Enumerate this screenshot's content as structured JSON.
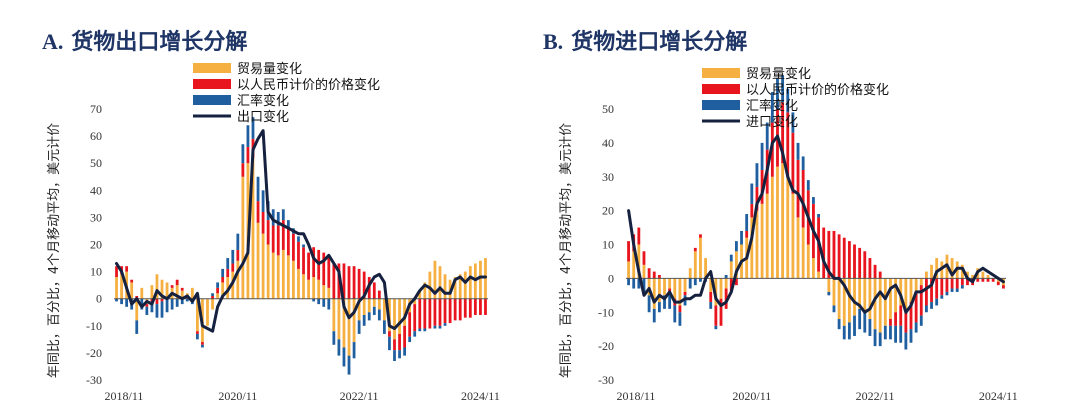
{
  "colors": {
    "volume": "#f5b041",
    "price": "#e8141e",
    "fx": "#1f5fa0",
    "line": "#15213f",
    "title": "#1f3566"
  },
  "chart_data": [
    {
      "type": "bar",
      "title_letter": "A.",
      "title_text": "货物出口增长分解",
      "ylabel": "年同比，百分比，4个月移动平均，美元计价",
      "ylim": [
        -30,
        70
      ],
      "yticks": [
        "70",
        "60",
        "50",
        "40",
        "30",
        "20",
        "10",
        "0",
        "-10",
        "-20",
        "-30"
      ],
      "xticklabels": [
        "2018/11",
        "2020/11",
        "2022/11",
        "2024/11"
      ],
      "xtick_index": [
        0,
        24,
        48,
        72
      ],
      "legend": [
        {
          "key": "volume",
          "label": "贸易量变化"
        },
        {
          "key": "price",
          "label": "以人民币计价的价格变化"
        },
        {
          "key": "fx",
          "label": "汇率变化"
        },
        {
          "key": "line",
          "label": "出口变化"
        }
      ],
      "x": [
        "2018/11",
        "2018/12",
        "2019/01",
        "2019/02",
        "2019/03",
        "2019/04",
        "2019/05",
        "2019/06",
        "2019/07",
        "2019/08",
        "2019/09",
        "2019/10",
        "2019/11",
        "2019/12",
        "2020/01",
        "2020/02",
        "2020/03",
        "2020/04",
        "2020/05",
        "2020/06",
        "2020/07",
        "2020/08",
        "2020/09",
        "2020/10",
        "2020/11",
        "2020/12",
        "2021/01",
        "2021/02",
        "2021/03",
        "2021/04",
        "2021/05",
        "2021/06",
        "2021/07",
        "2021/08",
        "2021/09",
        "2021/10",
        "2021/11",
        "2021/12",
        "2022/01",
        "2022/02",
        "2022/03",
        "2022/04",
        "2022/05",
        "2022/06",
        "2022/07",
        "2022/08",
        "2022/09",
        "2022/10",
        "2022/11",
        "2022/12",
        "2023/01",
        "2023/02",
        "2023/03",
        "2023/04",
        "2023/05",
        "2023/06",
        "2023/07",
        "2023/08",
        "2023/09",
        "2023/10",
        "2023/11",
        "2023/12",
        "2024/01",
        "2024/02",
        "2024/03",
        "2024/04",
        "2024/05",
        "2024/06",
        "2024/07",
        "2024/08",
        "2024/09",
        "2024/10",
        "2024/11",
        "2024/12"
      ],
      "series": [
        {
          "name": "贸易量变化",
          "key": "volume",
          "values": [
            8,
            9,
            10,
            6,
            -8,
            4,
            -2,
            5,
            9,
            7,
            6,
            4,
            5,
            3,
            2,
            4,
            -12,
            -16,
            -10,
            -4,
            2,
            6,
            8,
            10,
            14,
            45,
            50,
            52,
            28,
            24,
            20,
            17,
            16,
            18,
            16,
            14,
            11,
            9,
            7,
            8,
            7,
            5,
            4,
            -12,
            -15,
            -18,
            -21,
            -16,
            -8,
            -6,
            -5,
            -3,
            -4,
            -8,
            -12,
            -15,
            -13,
            -10,
            -5,
            -2,
            3,
            6,
            10,
            14,
            12,
            9,
            7,
            8,
            9,
            10,
            12,
            13,
            14,
            15
          ]
        },
        {
          "name": "以人民币计价的价格变化",
          "key": "price",
          "values": [
            4,
            3,
            2,
            1,
            1,
            0,
            -1,
            -1,
            -2,
            -1,
            0,
            1,
            2,
            1,
            0,
            -1,
            -1,
            -1,
            0,
            1,
            2,
            2,
            3,
            3,
            4,
            5,
            6,
            7,
            8,
            8,
            9,
            10,
            11,
            11,
            10,
            10,
            10,
            10,
            10,
            11,
            11,
            12,
            12,
            13,
            13,
            13,
            12,
            12,
            11,
            10,
            8,
            6,
            3,
            0,
            -2,
            -4,
            -6,
            -8,
            -9,
            -10,
            -11,
            -11,
            -11,
            -10,
            -10,
            -9,
            -9,
            -8,
            -8,
            -7,
            -7,
            -6,
            -6,
            -6
          ]
        },
        {
          "name": "汇率变化",
          "key": "fx",
          "values": [
            -1,
            -2,
            -3,
            -4,
            -5,
            -4,
            -3,
            -4,
            -5,
            -6,
            -5,
            -4,
            -3,
            -2,
            -1,
            -1,
            -2,
            -1,
            0,
            1,
            2,
            3,
            4,
            5,
            6,
            7,
            8,
            8,
            9,
            8,
            7,
            6,
            5,
            4,
            3,
            2,
            2,
            1,
            0,
            -1,
            -2,
            -3,
            -4,
            -5,
            -6,
            -7,
            -7,
            -6,
            -5,
            -4,
            -3,
            -3,
            -4,
            -5,
            -5,
            -4,
            -3,
            -3,
            -2,
            -2,
            -1,
            -1,
            0,
            -1,
            -1,
            -1,
            0,
            0,
            0,
            0,
            0,
            0,
            0,
            0
          ]
        },
        {
          "name": "出口变化",
          "key": "line",
          "values": [
            13,
            10,
            4,
            -2,
            0,
            -3,
            -1,
            -2,
            3,
            1,
            0,
            2,
            1,
            0,
            1,
            -1,
            2,
            -10,
            -11,
            -12,
            -3,
            1,
            3,
            6,
            10,
            13,
            17,
            55,
            59,
            62,
            32,
            29,
            28,
            27,
            26,
            25,
            24,
            24,
            20,
            15,
            13,
            14,
            16,
            13,
            10,
            -3,
            -7,
            -5,
            -1,
            1,
            5,
            8,
            9,
            6,
            -10,
            -11,
            -9,
            -7,
            -2,
            0,
            3,
            5,
            4,
            2,
            4,
            2,
            2,
            7,
            8,
            6,
            8,
            7,
            8,
            8
          ]
        }
      ]
    },
    {
      "type": "bar",
      "title_letter": "B.",
      "title_text": "货物进口增长分解",
      "ylabel": "年同比，百分比，4个月移动平均，美元计价",
      "ylim": [
        -30,
        50
      ],
      "yticks": [
        "50",
        "40",
        "30",
        "20",
        "10",
        "0",
        "-10",
        "-20",
        "-30"
      ],
      "xticklabels": [
        "2018/11",
        "2020/11",
        "2022/11",
        "2024/11"
      ],
      "xtick_index": [
        0,
        24,
        48,
        72
      ],
      "legend": [
        {
          "key": "volume",
          "label": "贸易量变化"
        },
        {
          "key": "price",
          "label": "以人民币计价的价格变化"
        },
        {
          "key": "fx",
          "label": "汇率变化"
        },
        {
          "key": "line",
          "label": "进口变化"
        }
      ],
      "x": [
        "2018/11",
        "2018/12",
        "2019/01",
        "2019/02",
        "2019/03",
        "2019/04",
        "2019/05",
        "2019/06",
        "2019/07",
        "2019/08",
        "2019/09",
        "2019/10",
        "2019/11",
        "2019/12",
        "2020/01",
        "2020/02",
        "2020/03",
        "2020/04",
        "2020/05",
        "2020/06",
        "2020/07",
        "2020/08",
        "2020/09",
        "2020/10",
        "2020/11",
        "2020/12",
        "2021/01",
        "2021/02",
        "2021/03",
        "2021/04",
        "2021/05",
        "2021/06",
        "2021/07",
        "2021/08",
        "2021/09",
        "2021/10",
        "2021/11",
        "2021/12",
        "2022/01",
        "2022/02",
        "2022/03",
        "2022/04",
        "2022/05",
        "2022/06",
        "2022/07",
        "2022/08",
        "2022/09",
        "2022/10",
        "2022/11",
        "2022/12",
        "2023/01",
        "2023/02",
        "2023/03",
        "2023/04",
        "2023/05",
        "2023/06",
        "2023/07",
        "2023/08",
        "2023/09",
        "2023/10",
        "2023/11",
        "2023/12",
        "2024/01",
        "2024/02",
        "2024/03",
        "2024/04",
        "2024/05",
        "2024/06",
        "2024/07",
        "2024/08",
        "2024/09",
        "2024/10",
        "2024/11",
        "2024/12"
      ],
      "series": [
        {
          "name": "贸易量变化",
          "key": "volume",
          "values": [
            5,
            8,
            10,
            4,
            -5,
            -9,
            -7,
            -5,
            -3,
            -6,
            -8,
            -4,
            3,
            8,
            12,
            6,
            -4,
            -8,
            -6,
            -3,
            5,
            8,
            10,
            12,
            18,
            20,
            22,
            25,
            30,
            33,
            34,
            30,
            25,
            18,
            15,
            10,
            6,
            2,
            0,
            -4,
            -8,
            -12,
            -14,
            -13,
            -11,
            -9,
            -10,
            -12,
            -15,
            -16,
            -14,
            -12,
            -10,
            -8,
            -9,
            -7,
            -4,
            -2,
            2,
            4,
            6,
            5,
            7,
            6,
            5,
            4,
            2,
            1,
            3,
            2,
            1,
            0,
            -1,
            -2
          ]
        },
        {
          "name": "以人民币计价的价格变化",
          "key": "price",
          "values": [
            6,
            5,
            5,
            4,
            3,
            2,
            1,
            0,
            -1,
            -2,
            -2,
            -1,
            0,
            1,
            1,
            0,
            -3,
            -6,
            -8,
            -6,
            -4,
            -2,
            0,
            2,
            4,
            7,
            10,
            13,
            16,
            17,
            18,
            19,
            18,
            17,
            17,
            16,
            16,
            16,
            15,
            14,
            14,
            13,
            12,
            11,
            10,
            9,
            8,
            6,
            4,
            2,
            0,
            -2,
            -4,
            -6,
            -7,
            -8,
            -9,
            -9,
            -8,
            -7,
            -6,
            -5,
            -4,
            -3,
            -3,
            -2,
            -2,
            -2,
            -1,
            -1,
            -1,
            -1,
            -1,
            -1
          ]
        },
        {
          "name": "汇率变化",
          "key": "fx",
          "values": [
            -2,
            -3,
            -3,
            -4,
            -5,
            -4,
            -3,
            -4,
            -5,
            -5,
            -4,
            -3,
            -3,
            -2,
            -1,
            -1,
            -2,
            -1,
            0,
            1,
            2,
            3,
            4,
            5,
            6,
            7,
            8,
            8,
            9,
            9,
            8,
            7,
            6,
            5,
            4,
            3,
            2,
            1,
            0,
            -1,
            -2,
            -3,
            -4,
            -5,
            -6,
            -6,
            -6,
            -5,
            -5,
            -4,
            -4,
            -4,
            -5,
            -5,
            -5,
            -4,
            -3,
            -3,
            -2,
            -2,
            -2,
            -1,
            -1,
            -1,
            -1,
            -1,
            0,
            0,
            0,
            0,
            0,
            0,
            0,
            0
          ]
        },
        {
          "name": "进口变化",
          "key": "line",
          "values": [
            20,
            10,
            2,
            -5,
            -3,
            -7,
            -5,
            -6,
            -4,
            -7,
            -7,
            -6,
            -6,
            -5,
            -5,
            0,
            2,
            -6,
            -8,
            -7,
            -4,
            2,
            5,
            6,
            12,
            22,
            25,
            32,
            40,
            42,
            37,
            30,
            26,
            25,
            22,
            18,
            14,
            11,
            5,
            2,
            0,
            0,
            -2,
            -5,
            -7,
            -8,
            -10,
            -9,
            -6,
            -4,
            -6,
            -3,
            -2,
            -5,
            -10,
            -8,
            -4,
            -4,
            -3,
            -2,
            2,
            3,
            4,
            1,
            3,
            3,
            0,
            -1,
            2,
            3,
            2,
            1,
            0,
            -1
          ]
        }
      ]
    }
  ]
}
